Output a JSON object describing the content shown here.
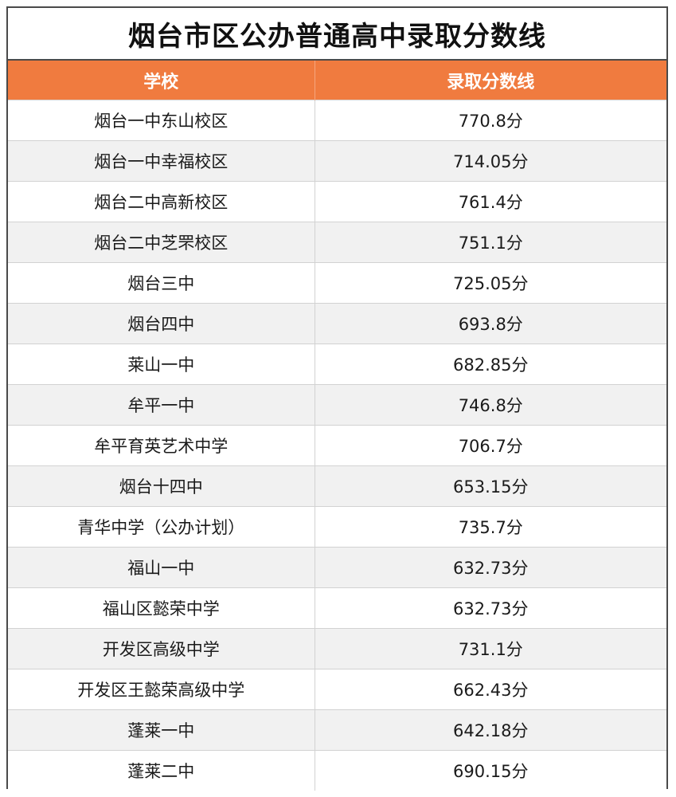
{
  "title": "烟台市区公办普通高中录取分数线",
  "header": {
    "col_school": "学校",
    "col_score": "录取分数线"
  },
  "rows": [
    {
      "school": "烟台一中东山校区",
      "score": "770.8分"
    },
    {
      "school": "烟台一中幸福校区",
      "score": "714.05分"
    },
    {
      "school": "烟台二中高新校区",
      "score": "761.4分"
    },
    {
      "school": "烟台二中芝罘校区",
      "score": "751.1分"
    },
    {
      "school": "烟台三中",
      "score": "725.05分"
    },
    {
      "school": "烟台四中",
      "score": "693.8分"
    },
    {
      "school": "莱山一中",
      "score": "682.85分"
    },
    {
      "school": "牟平一中",
      "score": "746.8分"
    },
    {
      "school": "牟平育英艺术中学",
      "score": "706.7分"
    },
    {
      "school": "烟台十四中",
      "score": "653.15分"
    },
    {
      "school": "青华中学（公办计划）",
      "score": "735.7分"
    },
    {
      "school": "福山一中",
      "score": "632.73分"
    },
    {
      "school": "福山区懿荣中学",
      "score": "632.73分"
    },
    {
      "school": "开发区高级中学",
      "score": "731.1分"
    },
    {
      "school": "开发区王懿荣高级中学",
      "score": "662.43分"
    },
    {
      "school": "蓬莱一中",
      "score": "642.18分"
    },
    {
      "school": "蓬莱二中",
      "score": "690.15分"
    }
  ],
  "colors": {
    "header_bg": "#f07b3f",
    "header_text": "#ffffff",
    "stripe": "#f1f1f1"
  }
}
